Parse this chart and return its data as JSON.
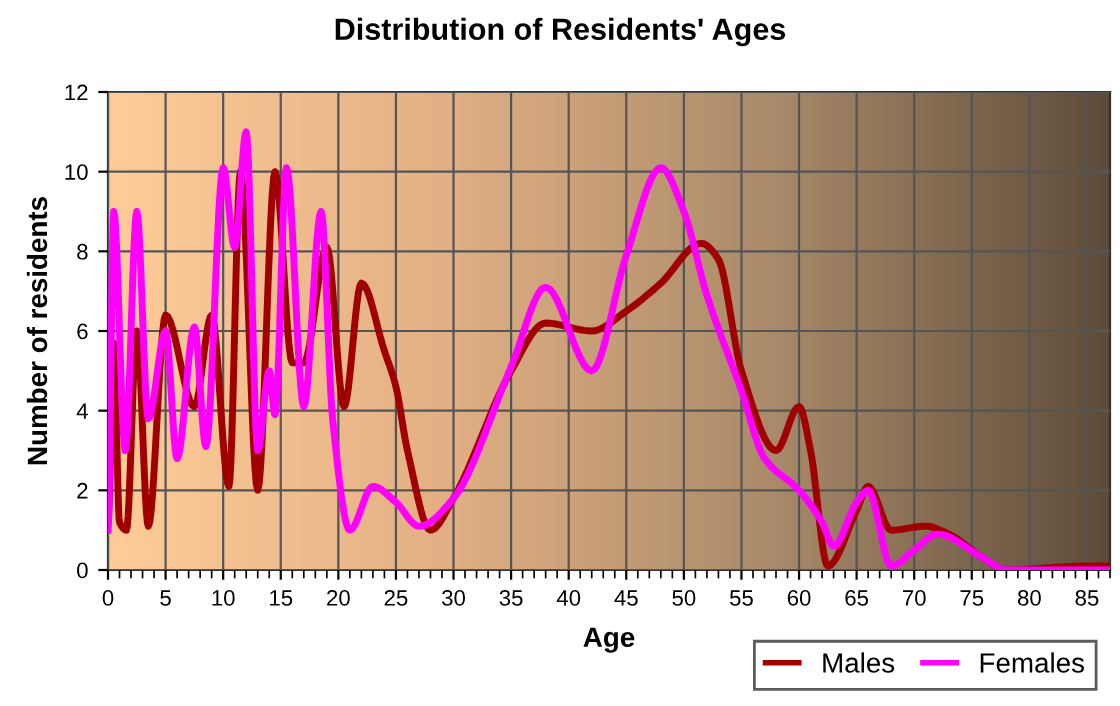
{
  "chart_data": {
    "type": "line",
    "title": "Distribution of Residents' Ages",
    "xlabel": "Age",
    "ylabel": "Number of residents",
    "xlim": [
      0,
      87
    ],
    "xticks": [
      0,
      5,
      10,
      15,
      20,
      25,
      30,
      35,
      40,
      45,
      50,
      55,
      60,
      65,
      70,
      75,
      80,
      85
    ],
    "ylim": [
      0,
      12
    ],
    "yticks": [
      0,
      2,
      4,
      6,
      8,
      10,
      12
    ],
    "grid": true,
    "legend": "bottom right",
    "marker": "none",
    "line_style": "solid",
    "series": [
      {
        "name": "Males",
        "color": "#a00000",
        "x": [
          0,
          0.5,
          1,
          1.6,
          2.5,
          3.5,
          5,
          7.5,
          9,
          10.5,
          11.5,
          13,
          14.5,
          16,
          17,
          19,
          20.5,
          22,
          24,
          25,
          26,
          28,
          30,
          35,
          38,
          42,
          45,
          48,
          51.5,
          53,
          55,
          58,
          60,
          61,
          62.5,
          65,
          66,
          68,
          71,
          73,
          76,
          78,
          85,
          87
        ],
        "values": [
          1.2,
          5.7,
          1.2,
          1,
          6,
          1.1,
          6.4,
          4.1,
          6.4,
          2.1,
          10,
          2,
          10,
          5.2,
          5.2,
          8.1,
          4.1,
          7.2,
          5.5,
          4.6,
          3,
          1,
          1.8,
          5,
          6.2,
          6,
          6.5,
          7.2,
          8.2,
          7.8,
          5,
          3,
          4.1,
          3,
          0.1,
          1.5,
          2.1,
          1,
          1.1,
          0.9,
          0.3,
          0,
          0.1,
          0.1
        ]
      },
      {
        "name": "Females",
        "color": "#ff00ff",
        "x": [
          0,
          0.5,
          1.5,
          2.5,
          3.5,
          5,
          6,
          7.5,
          8.5,
          10,
          11,
          12,
          13,
          14,
          14.5,
          15.5,
          17,
          18.5,
          19.5,
          21,
          23,
          25,
          27,
          30,
          35,
          38,
          42,
          45,
          48,
          50,
          52,
          55,
          57,
          60,
          62,
          63,
          65,
          66,
          68,
          70,
          72,
          76,
          78,
          87
        ],
        "values": [
          1,
          9,
          3,
          9,
          3.8,
          6,
          2.8,
          6.1,
          3.1,
          10.1,
          8.1,
          11,
          3,
          5,
          3.9,
          10.1,
          4.1,
          9,
          3.8,
          1,
          2.1,
          1.7,
          1.1,
          1.8,
          5.1,
          7.1,
          5,
          7.9,
          10.1,
          9,
          6.9,
          4.5,
          2.8,
          2,
          1.2,
          0.6,
          1.7,
          2,
          0.1,
          0.5,
          0.9,
          0.3,
          0,
          0
        ]
      }
    ]
  }
}
